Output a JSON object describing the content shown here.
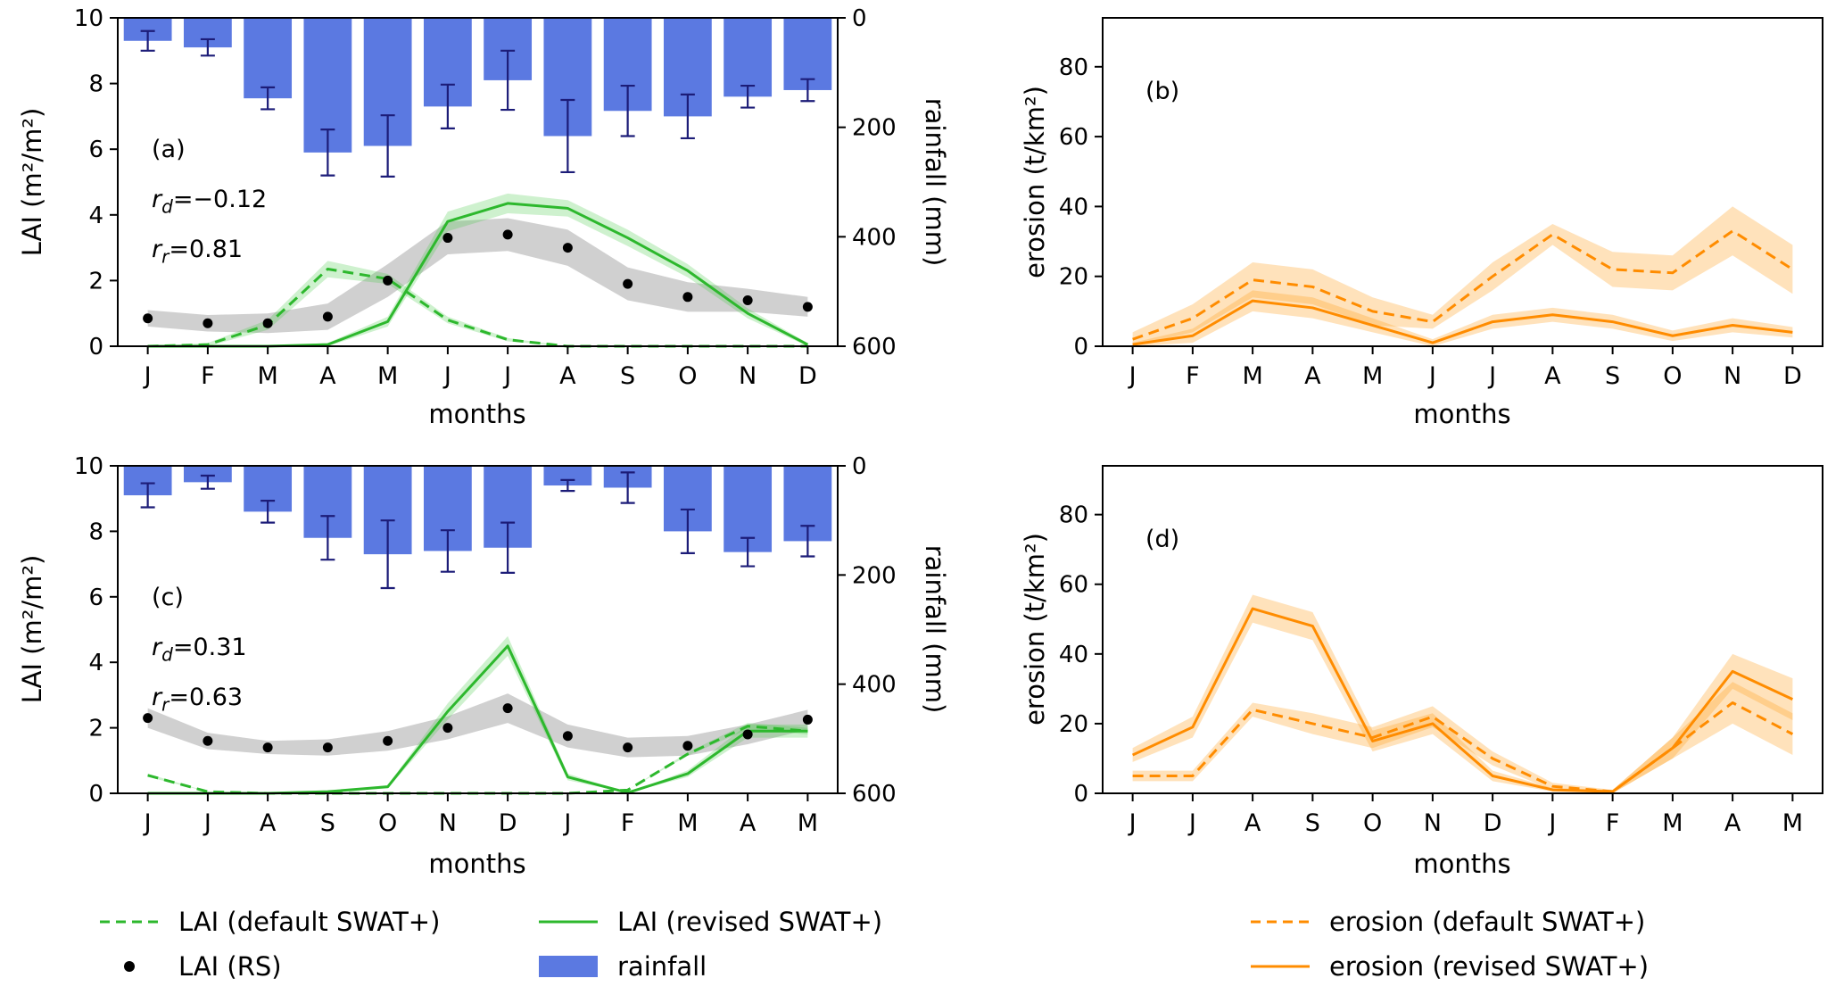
{
  "colors": {
    "bar": "#5b79e1",
    "bar_err": "#1c1c78",
    "green": "#2db82d",
    "green_band": "rgba(60,200,60,0.25)",
    "gray_band": "rgba(150,150,150,0.45)",
    "orange": "#ff8c00",
    "orange_band": "rgba(255,160,30,0.3)",
    "dot": "#000000"
  },
  "labels": {
    "months_axis": "months",
    "lai_axis": "LAI (m²/m²)",
    "rain_axis": "rainfall (mm)",
    "erosion_axis": "erosion (t/km²)"
  },
  "legend": {
    "lai_default": "LAI (default SWAT+)",
    "lai_revised": "LAI (revised SWAT+)",
    "lai_rs": "LAI (RS)",
    "rainfall": "rainfall",
    "erosion_default": "erosion (default SWAT+)",
    "erosion_revised": "erosion (revised SWAT+)"
  },
  "chart_data": [
    {
      "id": "a",
      "type": "line",
      "letter": "(a)",
      "annotations": [
        {
          "pre": "r",
          "sub": "d",
          "eq": "=−0.12"
        },
        {
          "pre": "r",
          "sub": "r",
          "eq": "=0.81"
        }
      ],
      "months": [
        "J",
        "F",
        "M",
        "A",
        "M",
        "J",
        "J",
        "A",
        "S",
        "O",
        "N",
        "D"
      ],
      "lai_ylim": [
        0,
        10
      ],
      "lai_ticks": [
        0,
        2,
        4,
        6,
        8,
        10
      ],
      "rain_ylim": [
        0,
        600
      ],
      "rain_ticks": [
        0,
        200,
        400,
        600
      ],
      "rainfall_mm": [
        42,
        54,
        147,
        246,
        234,
        162,
        114,
        216,
        170,
        180,
        144,
        132
      ],
      "rainfall_err_mm": [
        18,
        15,
        20,
        42,
        56,
        40,
        54,
        66,
        46,
        40,
        20,
        20
      ],
      "lai_rs": [
        0.85,
        0.7,
        0.7,
        0.9,
        2.0,
        3.3,
        3.4,
        3.0,
        1.9,
        1.5,
        1.4,
        1.2
      ],
      "lai_rs_band": [
        0.25,
        0.25,
        0.3,
        0.4,
        0.5,
        0.5,
        0.5,
        0.55,
        0.5,
        0.45,
        0.35,
        0.3
      ],
      "lai_default": [
        0,
        0.05,
        0.65,
        2.35,
        2.05,
        0.8,
        0.2,
        0,
        0,
        0,
        0,
        0
      ],
      "lai_default_band": [
        0,
        0.05,
        0.15,
        0.25,
        0.15,
        0.1,
        0.05,
        0,
        0,
        0,
        0,
        0
      ],
      "lai_revised": [
        0,
        0,
        0,
        0.05,
        0.75,
        3.8,
        4.35,
        4.2,
        3.3,
        2.3,
        1.0,
        0.05
      ],
      "lai_revised_band": [
        0,
        0,
        0,
        0.05,
        0.15,
        0.3,
        0.3,
        0.25,
        0.25,
        0.2,
        0.15,
        0.05
      ]
    },
    {
      "id": "b",
      "type": "line",
      "letter": "(b)",
      "months": [
        "J",
        "F",
        "M",
        "A",
        "M",
        "J",
        "J",
        "A",
        "S",
        "O",
        "N",
        "D"
      ],
      "ylim": [
        0,
        94
      ],
      "yticks": [
        0,
        20,
        40,
        60,
        80
      ],
      "erosion_default": [
        2,
        8,
        19,
        17,
        10,
        7,
        20,
        32,
        22,
        21,
        33,
        22
      ],
      "erosion_default_band": [
        2,
        4,
        5,
        5,
        4,
        2,
        4,
        3,
        5,
        5,
        7,
        7
      ],
      "erosion_revised": [
        0.5,
        3,
        13,
        11,
        6,
        1,
        7,
        9,
        7,
        3,
        6,
        4
      ],
      "erosion_revised_band": [
        0.5,
        2,
        3,
        3,
        2,
        1,
        2,
        2,
        2,
        1.5,
        2,
        1.5
      ]
    },
    {
      "id": "c",
      "type": "line",
      "letter": "(c)",
      "annotations": [
        {
          "pre": "r",
          "sub": "d",
          "eq": "=0.31"
        },
        {
          "pre": "r",
          "sub": "r",
          "eq": "=0.63"
        }
      ],
      "months": [
        "J",
        "J",
        "A",
        "S",
        "O",
        "N",
        "D",
        "J",
        "F",
        "M",
        "A",
        "M"
      ],
      "lai_ylim": [
        0,
        10
      ],
      "lai_ticks": [
        0,
        2,
        4,
        6,
        8,
        10
      ],
      "rain_ylim": [
        0,
        600
      ],
      "rain_ticks": [
        0,
        200,
        400,
        600
      ],
      "rainfall_mm": [
        54,
        30,
        84,
        132,
        162,
        156,
        150,
        36,
        40,
        120,
        158,
        138
      ],
      "rainfall_err_mm": [
        22,
        12,
        20,
        40,
        62,
        38,
        46,
        10,
        28,
        40,
        26,
        28
      ],
      "lai_rs": [
        2.3,
        1.6,
        1.4,
        1.4,
        1.6,
        2.0,
        2.6,
        1.75,
        1.4,
        1.45,
        1.8,
        2.25
      ],
      "lai_rs_band": [
        0.3,
        0.25,
        0.2,
        0.25,
        0.3,
        0.35,
        0.45,
        0.35,
        0.3,
        0.3,
        0.3,
        0.3
      ],
      "lai_default": [
        0.55,
        0.05,
        0,
        0,
        0,
        0,
        0,
        0,
        0.1,
        1.2,
        2.05,
        1.9
      ],
      "lai_default_band": [
        0.05,
        0,
        0,
        0,
        0,
        0,
        0,
        0,
        0,
        0.05,
        0.1,
        0.1
      ],
      "lai_revised": [
        0,
        0,
        0,
        0.05,
        0.2,
        2.5,
        4.5,
        0.5,
        0.02,
        0.6,
        1.9,
        1.9
      ],
      "lai_revised_band": [
        0,
        0,
        0,
        0,
        0.05,
        0.25,
        0.3,
        0.1,
        0,
        0.1,
        0.2,
        0.2
      ]
    },
    {
      "id": "d",
      "type": "line",
      "letter": "(d)",
      "months": [
        "J",
        "J",
        "A",
        "S",
        "O",
        "N",
        "D",
        "J",
        "F",
        "M",
        "A",
        "M"
      ],
      "ylim": [
        0,
        94
      ],
      "yticks": [
        0,
        20,
        40,
        60,
        80
      ],
      "erosion_default": [
        5,
        5,
        24,
        20,
        16,
        22,
        10,
        2,
        0.5,
        13,
        26,
        17
      ],
      "erosion_default_band": [
        1.5,
        1.5,
        2,
        3,
        3,
        3,
        2,
        1,
        0.5,
        3,
        6,
        6
      ],
      "erosion_revised": [
        11,
        19,
        53,
        48,
        15,
        20,
        5,
        1,
        0.5,
        13,
        35,
        27
      ],
      "erosion_revised_band": [
        2,
        3,
        4,
        4,
        3,
        3,
        1.5,
        0.5,
        0.5,
        3,
        5,
        6
      ]
    }
  ]
}
